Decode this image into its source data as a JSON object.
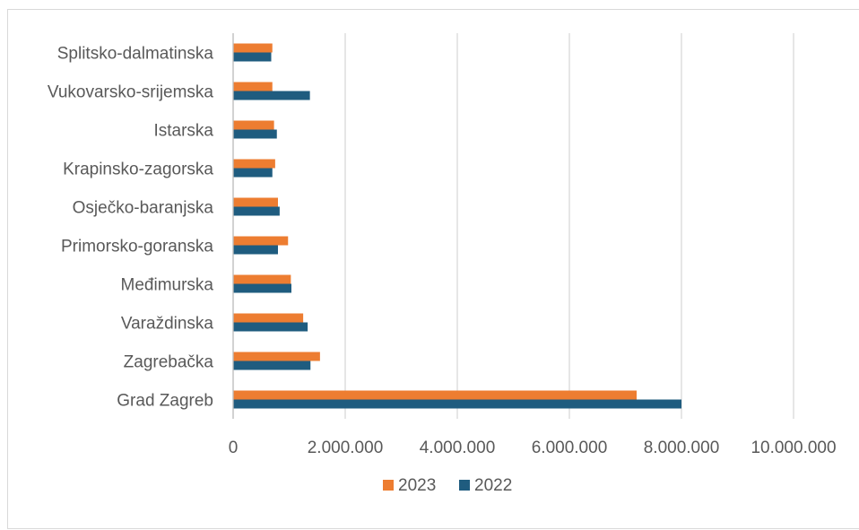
{
  "chart_data": {
    "type": "bar",
    "orientation": "horizontal",
    "title": "",
    "xlabel": "",
    "ylabel": "",
    "categories": [
      "Grad Zagreb",
      "Zagrebačka",
      "Varaždinska",
      "Međimurska",
      "Primorsko-goranska",
      "Osječko-baranjska",
      "Krapinsko-zagorska",
      "Istarska",
      "Vukovarsko-srijemska",
      "Splitsko-dalmatinska"
    ],
    "series": [
      {
        "name": "2023",
        "color": "#ED7D31",
        "values": [
          7200000,
          1550000,
          1250000,
          1030000,
          980000,
          800000,
          750000,
          730000,
          700000,
          700000
        ]
      },
      {
        "name": "2022",
        "color": "#1F5C7F",
        "values": [
          8000000,
          1380000,
          1330000,
          1040000,
          800000,
          830000,
          700000,
          780000,
          1370000,
          680000
        ]
      }
    ],
    "xlim": [
      0,
      10000000
    ],
    "ticks": [
      0,
      2000000,
      4000000,
      6000000,
      8000000,
      10000000
    ],
    "tick_labels": [
      "0",
      "2.000.000",
      "4.000.000",
      "6.000.000",
      "8.000.000",
      "10.000.000"
    ],
    "grid": true,
    "legend": {
      "position": "bottom",
      "entries": [
        "2023",
        "2022"
      ]
    }
  }
}
